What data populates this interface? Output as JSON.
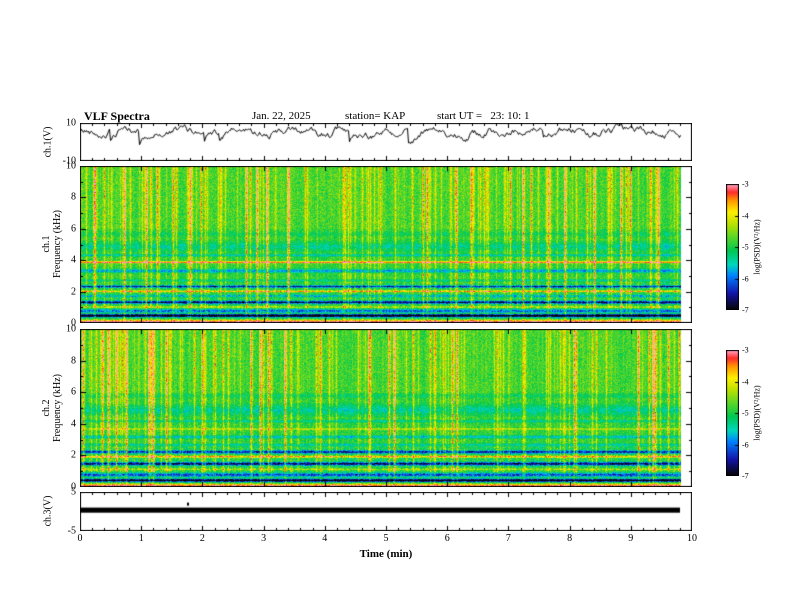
{
  "header": {
    "title": "VLF Spectra",
    "date": "Jan. 22, 2025",
    "station": "station= KAP",
    "start_ut": "start UT =   23: 10: 1"
  },
  "axes": {
    "xlabel": "Time (min)",
    "xlim": [
      0,
      10
    ],
    "xticks": [
      0,
      1,
      2,
      3,
      4,
      5,
      6,
      7,
      8,
      9,
      10
    ]
  },
  "panels": {
    "ch1_wave": {
      "ylabel": "ch.1(V)",
      "ylim": [
        -10,
        10
      ],
      "yticks": [
        10,
        -10
      ]
    },
    "ch1_spec": {
      "ylabel_line1": "ch.1",
      "ylabel_line2": "Frequency (kHz)",
      "ylim": [
        0,
        10
      ],
      "yticks": [
        10,
        8,
        6,
        4,
        2,
        0
      ]
    },
    "ch2_spec": {
      "ylabel_line1": "ch.2",
      "ylabel_line2": "Frequency (kHz)",
      "ylim": [
        0,
        10
      ],
      "yticks": [
        10,
        8,
        6,
        4,
        2,
        0
      ]
    },
    "ch3_wave": {
      "ylabel": "ch.3(V)",
      "ylim": [
        -5,
        5
      ],
      "yticks": [
        5,
        -5
      ]
    }
  },
  "colorbar": {
    "label": "log(PSD)(V²/Hz)",
    "ticks": [
      -3,
      -4,
      -5,
      -6,
      -7
    ],
    "zlim": [
      -7,
      -3
    ],
    "stops": [
      [
        0,
        [
          5,
          5,
          5
        ]
      ],
      [
        0.13,
        [
          20,
          20,
          170
        ]
      ],
      [
        0.27,
        [
          0,
          130,
          255
        ]
      ],
      [
        0.36,
        [
          0,
          215,
          190
        ]
      ],
      [
        0.47,
        [
          0,
          200,
          80
        ]
      ],
      [
        0.58,
        [
          90,
          215,
          40
        ]
      ],
      [
        0.68,
        [
          185,
          225,
          0
        ]
      ],
      [
        0.78,
        [
          255,
          240,
          0
        ]
      ],
      [
        0.87,
        [
          255,
          150,
          0
        ]
      ],
      [
        0.94,
        [
          255,
          45,
          45
        ]
      ],
      [
        1,
        [
          255,
          165,
          195
        ]
      ]
    ]
  },
  "chart_data": [
    {
      "type": "line",
      "panel": "ch1_waveform",
      "ylabel": "ch.1(V)",
      "ylim": [
        -10,
        10
      ],
      "xlim": [
        0,
        10
      ],
      "x_data_end": 9.82,
      "baseline": 5.5,
      "noise_step": 3.0,
      "dip_probability": 0.025,
      "description": "Noisy black voltage trace fluctuating around +5 V with frequent impulsive dips toward -4 V, spanning 0 to 9.8 min"
    },
    {
      "type": "heatmap",
      "panel": "ch1_spectrogram",
      "ylabel": "ch.1 Frequency (kHz)",
      "ylim": [
        0,
        10
      ],
      "xlim": [
        0,
        10
      ],
      "x_data_end": 9.82,
      "zlabel": "log(PSD)(V²/Hz)",
      "zlim": [
        -7,
        -3
      ],
      "background_level": -5.05,
      "bands_format": "[center_kHz, halfwidth_kHz, delta_log10_psd]",
      "bands": [
        [
          0.12,
          0.18,
          2.1
        ],
        [
          0.5,
          0.14,
          -2.6
        ],
        [
          0.8,
          0.16,
          -1.1
        ],
        [
          1.05,
          0.1,
          0.9
        ],
        [
          1.35,
          0.14,
          -2.0
        ],
        [
          1.75,
          0.12,
          -0.8
        ],
        [
          2.05,
          0.09,
          1.5
        ],
        [
          2.35,
          0.12,
          -1.6
        ],
        [
          2.75,
          0.12,
          -0.6
        ],
        [
          3.35,
          0.18,
          -1.1
        ],
        [
          3.9,
          0.09,
          1.9
        ],
        [
          4.35,
          0.12,
          -0.8
        ],
        [
          4.9,
          0.45,
          -0.55
        ],
        [
          5.7,
          0.2,
          -0.3
        ]
      ],
      "description": "Broadband green background (~1e-5) with dense vertical sferic streaks (yellow/orange/red), cyan-blue horizontal bands below 3 kHz, red narrowband line near 3.9 kHz, pink-white line at 0 kHz"
    },
    {
      "type": "heatmap",
      "panel": "ch2_spectrogram",
      "ylabel": "ch.2 Frequency (kHz)",
      "ylim": [
        0,
        10
      ],
      "xlim": [
        0,
        10
      ],
      "x_data_end": 9.82,
      "zlabel": "log(PSD)(V²/Hz)",
      "zlim": [
        -7,
        -3
      ],
      "background_level": -5.05,
      "bands_format": "[center_kHz, halfwidth_kHz, delta_log10_psd]",
      "bands": [
        [
          0.12,
          0.18,
          2.0
        ],
        [
          0.45,
          0.14,
          -2.4
        ],
        [
          0.8,
          0.18,
          -1.3
        ],
        [
          1.15,
          0.1,
          0.8
        ],
        [
          1.5,
          0.16,
          -2.0
        ],
        [
          1.95,
          0.1,
          1.6
        ],
        [
          2.25,
          0.14,
          -1.7
        ],
        [
          2.7,
          0.12,
          -0.7
        ],
        [
          3.2,
          0.14,
          -0.9
        ],
        [
          3.7,
          0.1,
          0.7
        ],
        [
          4.2,
          0.12,
          -0.6
        ],
        [
          4.9,
          0.5,
          -0.6
        ],
        [
          5.8,
          0.2,
          -0.3
        ]
      ],
      "description": "Broadband green background with dense vertical sferic streaks, dark/cyan horizontal bands below 3 kHz, orange narrowband line near 2 kHz, pink-white line at 0 kHz"
    },
    {
      "type": "line",
      "panel": "ch3_waveform",
      "ylabel": "ch.3(V)",
      "ylim": [
        -5,
        5
      ],
      "xlim": [
        0,
        10
      ],
      "x_data_end": 9.82,
      "bar_level": [
        1.0,
        -0.3
      ],
      "description": "Saturated flat black band near 0.5 V spanning 0 to 9.8 min (signal clipped), tiny mark near 1.75 min"
    }
  ]
}
